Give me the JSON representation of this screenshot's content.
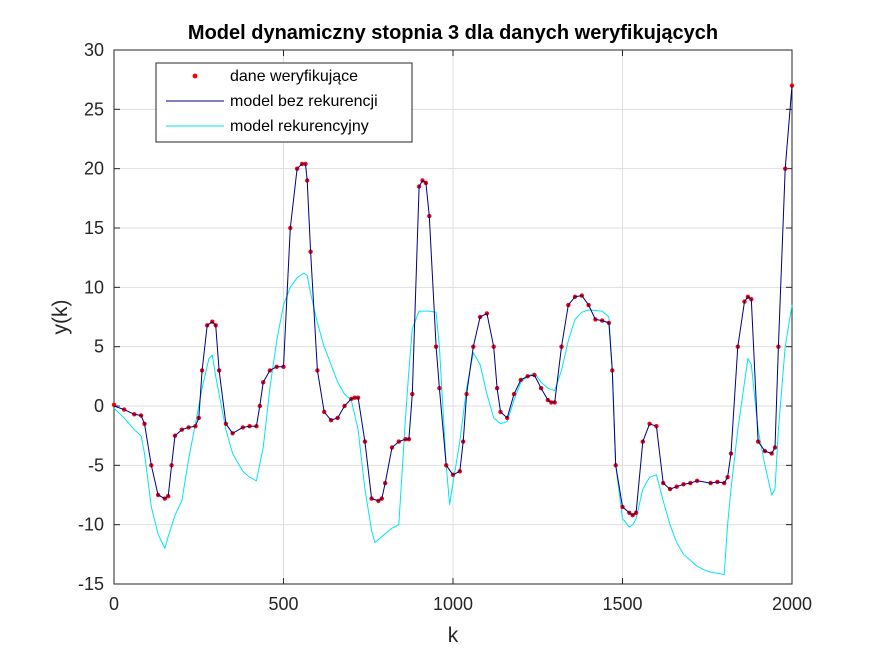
{
  "chart_data": {
    "type": "line",
    "title": "Model dynamiczny stopnia 3 dla danych weryfikujących",
    "xlabel": "k",
    "ylabel": "y(k)",
    "xlim": [
      0,
      2000
    ],
    "ylim": [
      -15,
      30
    ],
    "xticks": [
      0,
      500,
      1000,
      1500,
      2000
    ],
    "yticks": [
      -15,
      -10,
      -5,
      0,
      5,
      10,
      15,
      20,
      25,
      30
    ],
    "xtick_labels": [
      "0",
      "500",
      "1000",
      "1500",
      "2000"
    ],
    "ytick_labels": [
      "-15",
      "-10",
      "-5",
      "0",
      "5",
      "10",
      "15",
      "20",
      "25",
      "30"
    ],
    "grid": true,
    "legend_position": "top-left",
    "series": [
      {
        "name": "dane weryfikujące",
        "style": "markers",
        "color": "#ff0000",
        "x": [
          0,
          30,
          60,
          80,
          90,
          110,
          130,
          150,
          160,
          170,
          180,
          200,
          220,
          240,
          250,
          260,
          275,
          290,
          300,
          310,
          330,
          350,
          380,
          400,
          420,
          430,
          440,
          460,
          480,
          500,
          520,
          540,
          555,
          565,
          570,
          580,
          600,
          620,
          640,
          660,
          680,
          700,
          710,
          720,
          740,
          760,
          780,
          790,
          800,
          820,
          840,
          860,
          870,
          880,
          900,
          910,
          920,
          930,
          950,
          960,
          980,
          1000,
          1020,
          1030,
          1040,
          1060,
          1080,
          1100,
          1120,
          1130,
          1140,
          1160,
          1180,
          1200,
          1220,
          1240,
          1260,
          1280,
          1290,
          1300,
          1320,
          1340,
          1360,
          1380,
          1400,
          1420,
          1440,
          1460,
          1470,
          1480,
          1500,
          1520,
          1530,
          1540,
          1560,
          1580,
          1600,
          1620,
          1640,
          1660,
          1680,
          1700,
          1720,
          1760,
          1780,
          1800,
          1810,
          1820,
          1840,
          1860,
          1870,
          1880,
          1900,
          1920,
          1940,
          1950,
          1960,
          1980,
          2000
        ],
        "y": [
          0.1,
          -0.3,
          -0.7,
          -0.8,
          -1.5,
          -5.0,
          -7.5,
          -7.8,
          -7.6,
          -5.0,
          -2.5,
          -2.0,
          -1.8,
          -1.7,
          -1.0,
          3.0,
          6.8,
          7.1,
          6.8,
          3.0,
          -1.5,
          -2.3,
          -1.8,
          -1.7,
          -1.7,
          0.0,
          2.0,
          3.0,
          3.3,
          3.3,
          15.0,
          20.0,
          20.4,
          20.4,
          19.0,
          13.0,
          3.0,
          -0.5,
          -1.2,
          -1.0,
          0.0,
          0.6,
          0.7,
          0.7,
          -3.0,
          -7.8,
          -8.0,
          -7.8,
          -6.5,
          -3.5,
          -3.0,
          -2.8,
          -2.8,
          1.0,
          18.5,
          19.0,
          18.8,
          16.0,
          5.0,
          1.5,
          -5.0,
          -5.8,
          -5.5,
          -3.0,
          1.0,
          5.0,
          7.5,
          7.8,
          5.0,
          1.5,
          -0.5,
          -1.0,
          1.0,
          2.2,
          2.5,
          2.6,
          1.5,
          0.5,
          0.3,
          0.3,
          5.0,
          8.5,
          9.2,
          9.3,
          8.5,
          7.3,
          7.2,
          7.0,
          3.0,
          -5.0,
          -8.5,
          -9.0,
          -9.2,
          -9.0,
          -3.0,
          -1.5,
          -1.7,
          -6.5,
          -7.0,
          -6.8,
          -6.6,
          -6.5,
          -6.3,
          -6.5,
          -6.4,
          -6.5,
          -6.0,
          -4.0,
          5.0,
          8.8,
          9.2,
          9.0,
          -3.0,
          -3.8,
          -4.0,
          -3.5,
          5.0,
          20.0,
          27.0
        ]
      },
      {
        "name": "model bez rekurencji",
        "style": "line",
        "color": "#000080",
        "x": [
          0,
          30,
          60,
          80,
          90,
          110,
          130,
          150,
          160,
          170,
          180,
          200,
          220,
          240,
          250,
          260,
          275,
          290,
          300,
          310,
          330,
          350,
          380,
          400,
          420,
          430,
          440,
          460,
          480,
          500,
          520,
          540,
          555,
          565,
          570,
          580,
          600,
          620,
          640,
          660,
          680,
          700,
          710,
          720,
          740,
          760,
          780,
          790,
          800,
          820,
          840,
          860,
          870,
          880,
          900,
          910,
          920,
          930,
          950,
          960,
          980,
          1000,
          1020,
          1030,
          1040,
          1060,
          1080,
          1100,
          1120,
          1130,
          1140,
          1160,
          1180,
          1200,
          1220,
          1240,
          1260,
          1280,
          1290,
          1300,
          1320,
          1340,
          1360,
          1380,
          1400,
          1420,
          1440,
          1460,
          1470,
          1480,
          1500,
          1520,
          1530,
          1540,
          1560,
          1580,
          1600,
          1620,
          1640,
          1660,
          1680,
          1700,
          1720,
          1760,
          1780,
          1800,
          1810,
          1820,
          1840,
          1860,
          1870,
          1880,
          1900,
          1920,
          1940,
          1950,
          1960,
          1980,
          2000
        ],
        "y": [
          0.0,
          -0.3,
          -0.7,
          -0.8,
          -1.5,
          -5.0,
          -7.5,
          -7.8,
          -7.6,
          -5.0,
          -2.5,
          -2.0,
          -1.8,
          -1.7,
          -1.0,
          3.0,
          6.8,
          7.1,
          6.8,
          3.0,
          -1.5,
          -2.3,
          -1.8,
          -1.7,
          -1.7,
          0.0,
          2.0,
          3.0,
          3.3,
          3.3,
          15.0,
          20.0,
          20.4,
          20.4,
          19.0,
          13.0,
          3.0,
          -0.5,
          -1.2,
          -1.0,
          0.0,
          0.6,
          0.7,
          0.7,
          -3.0,
          -7.8,
          -8.0,
          -7.8,
          -6.5,
          -3.5,
          -3.0,
          -2.8,
          -2.8,
          1.0,
          18.5,
          19.0,
          18.8,
          16.0,
          5.0,
          1.5,
          -5.0,
          -5.8,
          -5.5,
          -3.0,
          1.0,
          5.0,
          7.5,
          7.8,
          5.0,
          1.5,
          -0.5,
          -1.0,
          1.0,
          2.2,
          2.5,
          2.6,
          1.5,
          0.5,
          0.3,
          0.3,
          5.0,
          8.5,
          9.2,
          9.3,
          8.5,
          7.3,
          7.2,
          7.0,
          3.0,
          -5.0,
          -8.5,
          -9.0,
          -9.2,
          -9.0,
          -3.0,
          -1.5,
          -1.7,
          -6.5,
          -7.0,
          -6.8,
          -6.6,
          -6.5,
          -6.3,
          -6.5,
          -6.4,
          -6.5,
          -6.0,
          -4.0,
          5.0,
          8.8,
          9.2,
          9.0,
          -3.0,
          -3.8,
          -4.0,
          -3.5,
          5.0,
          20.0,
          27.0
        ]
      },
      {
        "name": "model rekurencyjny",
        "style": "line",
        "color": "#00e5ee",
        "x": [
          0,
          30,
          60,
          80,
          90,
          110,
          130,
          150,
          160,
          180,
          200,
          220,
          250,
          260,
          280,
          290,
          300,
          330,
          350,
          380,
          400,
          420,
          440,
          460,
          480,
          500,
          520,
          540,
          560,
          570,
          580,
          600,
          620,
          640,
          660,
          680,
          700,
          720,
          740,
          760,
          770,
          790,
          820,
          840,
          860,
          870,
          880,
          900,
          930,
          950,
          960,
          980,
          990,
          1000,
          1020,
          1040,
          1060,
          1080,
          1100,
          1120,
          1140,
          1160,
          1180,
          1200,
          1220,
          1240,
          1260,
          1280,
          1300,
          1320,
          1340,
          1360,
          1380,
          1400,
          1440,
          1460,
          1470,
          1480,
          1500,
          1520,
          1530,
          1540,
          1560,
          1580,
          1600,
          1620,
          1640,
          1660,
          1680,
          1700,
          1720,
          1740,
          1760,
          1780,
          1800,
          1810,
          1820,
          1840,
          1860,
          1870,
          1880,
          1900,
          1920,
          1940,
          1950,
          1960,
          1980,
          2000
        ],
        "y": [
          -0.2,
          -1.0,
          -2.0,
          -2.5,
          -4.0,
          -8.5,
          -10.8,
          -12.0,
          -11.0,
          -9.2,
          -8.0,
          -4.5,
          0.0,
          1.5,
          4.0,
          4.3,
          2.5,
          -2.0,
          -4.0,
          -5.5,
          -6.0,
          -6.3,
          -3.5,
          1.5,
          5.5,
          8.5,
          10.0,
          10.8,
          11.2,
          11.0,
          9.5,
          7.0,
          5.0,
          3.5,
          2.0,
          1.0,
          0.5,
          -2.0,
          -7.0,
          -10.5,
          -11.5,
          -11.0,
          -10.3,
          -10.0,
          -1.0,
          3.0,
          6.5,
          8.0,
          8.0,
          7.9,
          5.0,
          -5.0,
          -8.3,
          -6.5,
          -3.0,
          1.5,
          4.5,
          3.5,
          1.0,
          -1.0,
          -1.5,
          -1.3,
          0.5,
          2.0,
          2.5,
          2.8,
          2.0,
          1.5,
          1.3,
          3.0,
          5.5,
          7.3,
          7.9,
          8.1,
          8.0,
          7.5,
          3.0,
          -5.0,
          -9.5,
          -10.2,
          -10.0,
          -9.5,
          -7.0,
          -6.0,
          -5.8,
          -8.0,
          -10.0,
          -11.5,
          -12.5,
          -13.0,
          -13.5,
          -13.8,
          -14.0,
          -14.1,
          -14.2,
          -10.0,
          -7.0,
          -2.0,
          2.0,
          4.0,
          3.5,
          -2.0,
          -5.0,
          -7.5,
          -7.0,
          -2.0,
          5.0,
          8.5
        ]
      }
    ]
  }
}
